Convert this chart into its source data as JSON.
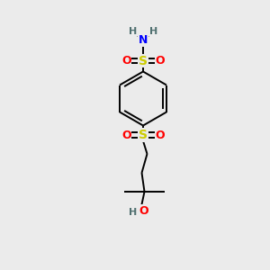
{
  "background_color": "#EBEBEB",
  "atom_colors": {
    "S": "#CCCC00",
    "O": "#FF0000",
    "N": "#0000FF",
    "H": "#507070",
    "C": "#000000"
  },
  "bond_color": "#000000",
  "figsize": [
    3.0,
    3.0
  ],
  "dpi": 100,
  "xlim": [
    0,
    10
  ],
  "ylim": [
    0,
    10
  ]
}
